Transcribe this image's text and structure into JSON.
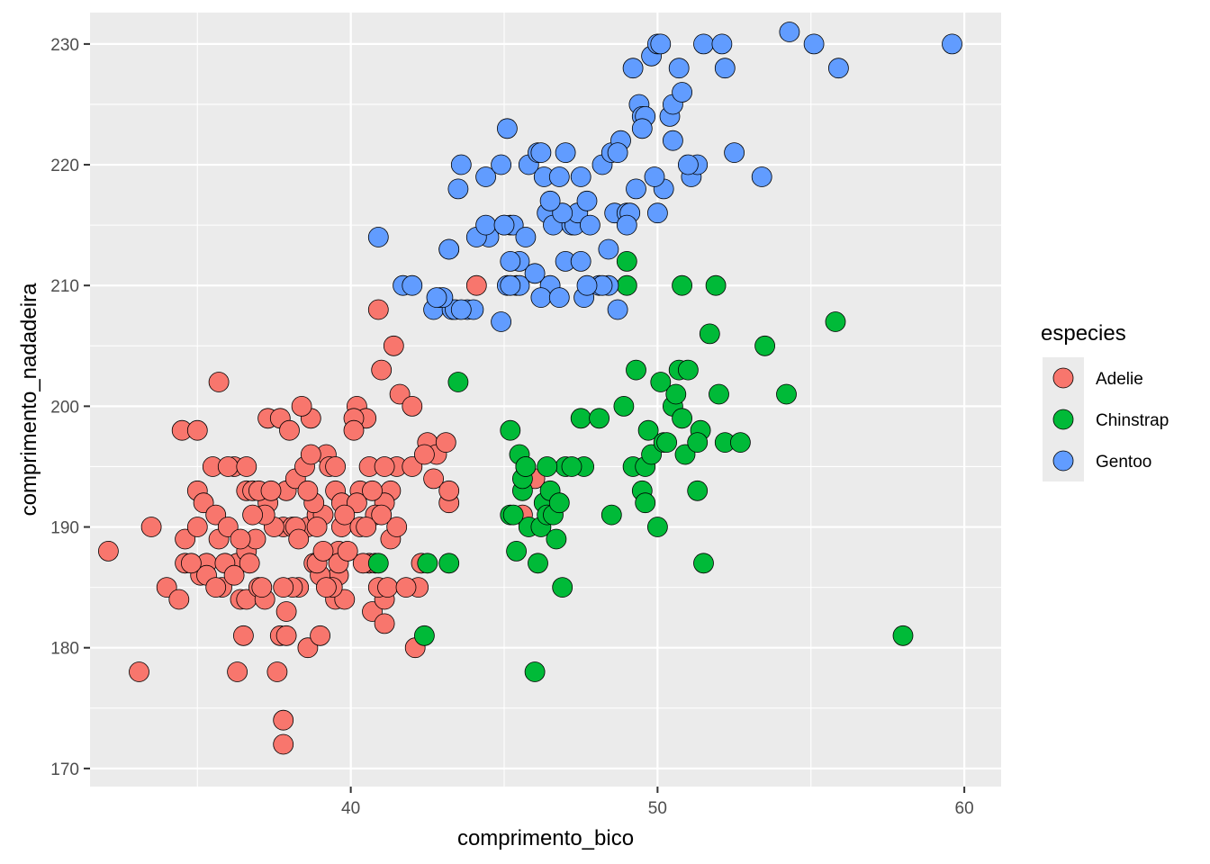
{
  "chart_data": {
    "type": "scatter",
    "xlabel": "comprimento_bico",
    "ylabel": "comprimento_nadadeira",
    "xlim": [
      31.5,
      61.2
    ],
    "ylim": [
      168.5,
      232.6
    ],
    "x_ticks": [
      40,
      50,
      60
    ],
    "y_ticks": [
      170,
      180,
      190,
      200,
      210,
      220,
      230
    ],
    "x_tick_labels": [
      "40",
      "50",
      "60"
    ],
    "y_tick_labels": [
      "170",
      "180",
      "190",
      "200",
      "210",
      "220",
      "230"
    ],
    "grid": true,
    "legend": {
      "title": "especies",
      "placement": "right",
      "entries": [
        "Adelie",
        "Chinstrap",
        "Gentoo"
      ]
    },
    "colors": {
      "panel_background": "#ebebeb",
      "grid": "#ffffff",
      "point_outline": "#000000",
      "legend_key_background": "#ebebeb"
    },
    "series": [
      {
        "name": "Adelie",
        "color": "#F8766D",
        "x": [
          32.1,
          33.1,
          33.5,
          34.0,
          34.4,
          34.5,
          34.6,
          34.6,
          35.0,
          35.0,
          35.1,
          35.2,
          35.3,
          35.5,
          35.6,
          35.7,
          35.7,
          35.8,
          36.0,
          36.2,
          36.3,
          36.4,
          36.5,
          36.6,
          36.6,
          36.6,
          36.7,
          36.8,
          36.9,
          37.0,
          37.2,
          37.3,
          37.3,
          37.6,
          37.7,
          37.7,
          37.8,
          37.8,
          37.8,
          37.9,
          37.9,
          38.1,
          38.2,
          38.3,
          38.5,
          38.6,
          38.6,
          38.7,
          38.8,
          38.9,
          39.0,
          39.1,
          39.2,
          39.3,
          39.5,
          39.5,
          39.6,
          39.6,
          39.7,
          39.8,
          40.2,
          40.3,
          40.5,
          40.6,
          40.7,
          40.8,
          40.9,
          41.0,
          41.1,
          41.1,
          41.4,
          41.5,
          41.6,
          42.0,
          42.1,
          42.2,
          42.3,
          42.5,
          42.8,
          43.1,
          43.2,
          44.1,
          45.6,
          46.0,
          35.9,
          37.5,
          38.0,
          39.0,
          40.1,
          41.3,
          36.2,
          38.8,
          39.7,
          40.9,
          42.7,
          36.0,
          37.0,
          38.1,
          38.9,
          39.4,
          40.6,
          41.1,
          42.0,
          43.2,
          35.3,
          36.6,
          37.2,
          38.2,
          39.2,
          40.4,
          40.8,
          41.3,
          35.0,
          36.4,
          37.8,
          39.6,
          40.2,
          41.1,
          34.8,
          35.6,
          36.8,
          38.6,
          39.8,
          40.7,
          41.5,
          37.1,
          38.3,
          39.1,
          40.1,
          41.2,
          37.9,
          38.7,
          39.5,
          40.3,
          41.0,
          42.4,
          38.4,
          39.9,
          41.8,
          36.3,
          37.4,
          38.9,
          40.5
        ],
        "y": [
          188,
          178,
          190,
          185,
          184,
          198,
          189,
          187,
          193,
          190,
          186,
          192,
          187,
          195,
          191,
          202,
          189,
          185,
          190,
          195,
          187,
          184,
          181,
          188,
          184,
          193,
          187,
          193,
          189,
          185,
          184,
          199,
          192,
          178,
          199,
          181,
          190,
          174,
          172,
          183,
          193,
          190,
          194,
          185,
          195,
          190,
          180,
          199,
          187,
          191,
          181,
          191,
          196,
          195,
          193,
          184,
          188,
          186,
          190,
          184,
          200,
          193,
          199,
          187,
          183,
          187,
          208,
          203,
          184,
          182,
          205,
          195,
          201,
          200,
          180,
          185,
          187,
          197,
          196,
          197,
          192,
          210,
          191,
          194,
          187,
          190,
          198,
          186,
          199,
          193,
          186,
          192,
          192,
          185,
          194,
          195,
          193,
          185,
          187,
          185,
          195,
          192,
          195,
          193,
          186,
          195,
          191,
          190,
          185,
          187,
          191,
          189,
          198,
          189,
          185,
          187,
          192,
          195,
          187,
          185,
          191,
          193,
          191,
          193,
          190,
          185,
          189,
          188,
          198,
          185,
          181,
          196,
          195,
          190,
          191,
          196,
          200,
          188,
          185,
          178,
          193,
          190,
          190
        ]
      },
      {
        "name": "Chinstrap",
        "color": "#00BA38",
        "x": [
          40.9,
          42.4,
          42.5,
          43.2,
          43.5,
          45.2,
          45.2,
          45.4,
          45.5,
          45.6,
          45.6,
          45.7,
          45.7,
          45.8,
          46.0,
          46.1,
          46.2,
          46.3,
          46.4,
          46.5,
          46.6,
          46.7,
          46.8,
          46.9,
          47.0,
          47.5,
          47.6,
          48.1,
          48.5,
          49.0,
          49.0,
          49.2,
          49.3,
          49.5,
          49.6,
          49.7,
          49.8,
          50.0,
          50.1,
          50.2,
          50.3,
          50.5,
          50.6,
          50.7,
          50.8,
          50.9,
          51.0,
          51.3,
          51.4,
          51.5,
          51.7,
          51.9,
          52.0,
          52.2,
          52.7,
          53.5,
          54.2,
          55.8,
          58.0,
          46.4,
          48.9,
          50.8,
          51.3,
          45.3,
          47.2,
          49.6
        ],
        "y": [
          187,
          181,
          187,
          187,
          202,
          198,
          191,
          188,
          196,
          193,
          194,
          195,
          195,
          190,
          178,
          187,
          190,
          192,
          191,
          193,
          191,
          189,
          192,
          185,
          195,
          199,
          195,
          199,
          191,
          210,
          212,
          195,
          203,
          193,
          195,
          198,
          196,
          190,
          202,
          197,
          197,
          200,
          201,
          203,
          210,
          196,
          203,
          193,
          198,
          187,
          206,
          210,
          201,
          197,
          197,
          205,
          201,
          207,
          181,
          195,
          200,
          199,
          197,
          191,
          195,
          192
        ]
      },
      {
        "name": "Gentoo",
        "color": "#619CFF",
        "x": [
          40.9,
          41.7,
          42.0,
          42.7,
          42.9,
          43.2,
          43.3,
          43.4,
          43.5,
          43.6,
          43.8,
          44.0,
          44.4,
          44.5,
          44.9,
          45.0,
          45.1,
          45.1,
          45.2,
          45.3,
          45.4,
          45.5,
          45.7,
          45.8,
          46.1,
          46.2,
          46.3,
          46.4,
          46.5,
          46.6,
          46.8,
          47.0,
          47.2,
          47.3,
          47.4,
          47.5,
          47.6,
          47.7,
          47.8,
          48.1,
          48.2,
          48.4,
          48.5,
          48.6,
          48.7,
          48.8,
          49.0,
          49.1,
          49.2,
          49.3,
          49.4,
          49.5,
          49.6,
          49.8,
          50.0,
          50.1,
          50.2,
          50.4,
          50.5,
          50.7,
          50.8,
          51.1,
          51.3,
          51.5,
          52.1,
          52.2,
          52.5,
          53.4,
          54.3,
          55.1,
          55.9,
          59.6,
          43.2,
          44.1,
          45.2,
          46.2,
          47.5,
          48.4,
          49.9,
          50.5,
          45.5,
          46.9,
          48.7,
          44.9,
          46.0,
          47.0,
          48.2,
          49.0,
          50.0,
          45.2,
          43.6,
          44.4,
          46.8,
          47.7,
          49.5,
          51.0,
          45.0,
          46.5,
          43.0,
          42.8
        ],
        "y": [
          214,
          210,
          210,
          208,
          209,
          213,
          208,
          208,
          218,
          220,
          208,
          208,
          219,
          214,
          220,
          215,
          223,
          210,
          215,
          215,
          210,
          212,
          214,
          220,
          221,
          221,
          219,
          216,
          210,
          215,
          219,
          212,
          215,
          215,
          216,
          212,
          209,
          217,
          215,
          210,
          220,
          210,
          221,
          216,
          208,
          222,
          216,
          216,
          228,
          218,
          225,
          224,
          224,
          229,
          230,
          230,
          218,
          224,
          225,
          228,
          226,
          219,
          220,
          230,
          230,
          228,
          221,
          219,
          231,
          230,
          228,
          230,
          213,
          214,
          212,
          209,
          219,
          213,
          219,
          222,
          210,
          216,
          221,
          207,
          211,
          221,
          210,
          215,
          216,
          210,
          208,
          215,
          209,
          210,
          223,
          220,
          215,
          217,
          209,
          209
        ]
      }
    ]
  }
}
